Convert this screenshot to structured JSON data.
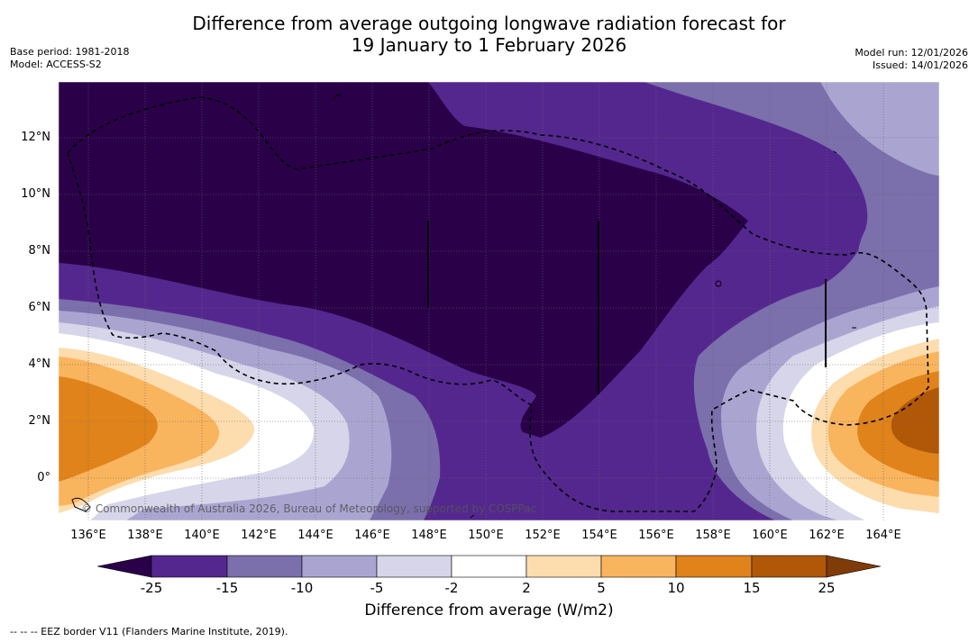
{
  "title_line1": "Difference from average outgoing longwave radiation forecast for",
  "title_line2": "19 January to 1 February 2026",
  "base_period": "Base period: 1981-2018",
  "model": "Model: ACCESS-S2",
  "model_run": "Model run: 12/01/2026",
  "issued": "Issued: 14/01/2026",
  "copyright": "© Commonwealth of Australia 2026, Bureau of Meteorology, supported by COSPPac",
  "footnote": "--  --  -- EEZ border V11 (Flanders Marine Institute, 2019).",
  "colorbar_title": "Difference from average (W/m2)",
  "lat_labels": [
    "12°N",
    "10°N",
    "8°N",
    "6°N",
    "4°N",
    "2°N",
    "0°"
  ],
  "lon_labels": [
    "136°E",
    "138°E",
    "140°E",
    "142°E",
    "144°E",
    "146°E",
    "148°E",
    "150°E",
    "152°E",
    "154°E",
    "156°E",
    "158°E",
    "160°E",
    "162°E",
    "164°E"
  ],
  "colorbar": {
    "labels": [
      "-25",
      "-15",
      "-10",
      "-5",
      "-2",
      "2",
      "5",
      "10",
      "15",
      "25"
    ],
    "colors": [
      "#2a0049",
      "#54278f",
      "#7b6fac",
      "#aaa5d0",
      "#d6d5e9",
      "#ffffff",
      "#fddcae",
      "#f9b45e",
      "#e0831b",
      "#b05808",
      "#7f3b08"
    ]
  },
  "colors": {
    "bg": "#2a0049",
    "level_m15": "#54278f",
    "level_m10": "#7b6fac",
    "level_m5": "#aaa5d0",
    "level_m2": "#d6d5e9",
    "neutral": "#ffffff",
    "level_p2": "#fddcae",
    "level_p5": "#f9b45e",
    "level_p10": "#e0831b",
    "level_p15": "#b05808"
  }
}
